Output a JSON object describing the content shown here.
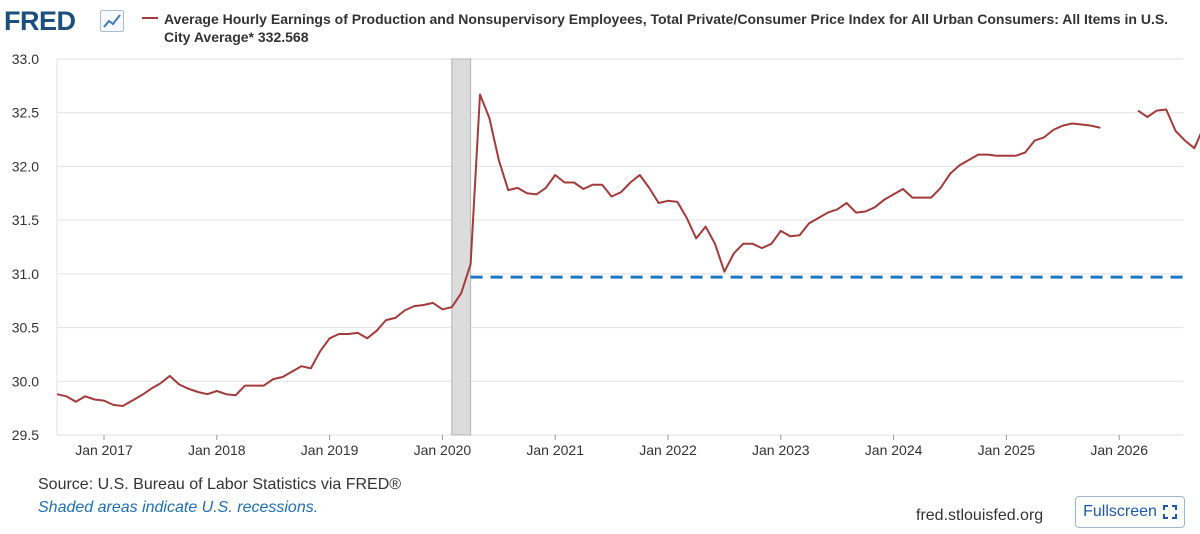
{
  "brand": {
    "logo_text": "FRED"
  },
  "legend": {
    "text": "Average Hourly Earnings of Production and Nonsupervisory Employees, Total Private/Consumer Price Index for All Urban Consumers: All Items in U.S. City Average* 332.568",
    "color": "#a33b3b"
  },
  "footer": {
    "source": "U.S. Bureau of Labor Statistics via FRED®",
    "recession_note": "Shaded areas indicate U.S. recessions.",
    "site": "fred.stlouisfed.org",
    "fullscreen_label": "Fullscreen"
  },
  "chart_data": {
    "type": "line",
    "title": "",
    "xlabel": "",
    "ylabel": "",
    "x_ticks": [
      "Jan 2017",
      "Jan 2018",
      "Jan 2019",
      "Jan 2020",
      "Jan 2021",
      "Jan 2022",
      "Jan 2023",
      "Jan 2024",
      "Jan 2025",
      "Jan 2026"
    ],
    "y_ticks": [
      "33.0",
      "32.5",
      "32.0",
      "31.5",
      "31.0",
      "30.5",
      "30.0",
      "29.5"
    ],
    "ylim": [
      29.5,
      33.0
    ],
    "xlim": [
      "2016-08",
      "2026-07"
    ],
    "grid": true,
    "colors": {
      "series": "#a33b3b",
      "reference": "#1f77c4",
      "recession": "#dcdcdc"
    },
    "recessions": [
      {
        "start": "2020-02",
        "end": "2020-04"
      }
    ],
    "reference_line": {
      "y": 30.97,
      "start": "2020-04",
      "style": "dashed"
    },
    "series": [
      {
        "x_start": "2016-08",
        "values": [
          29.88,
          29.86,
          29.81,
          29.86,
          29.83,
          29.82,
          29.78,
          29.77,
          29.82,
          29.87,
          29.93,
          29.98,
          30.05,
          29.97,
          29.93,
          29.9,
          29.88,
          29.91,
          29.88,
          29.87,
          29.96,
          29.96,
          29.96,
          30.02,
          30.04,
          30.09,
          30.14,
          30.12,
          30.28,
          30.4,
          30.44,
          30.44,
          30.45,
          30.4,
          30.47,
          30.57,
          30.59,
          30.66,
          30.7,
          30.71,
          30.73,
          30.67,
          30.69,
          30.82,
          31.09,
          32.67,
          32.45,
          32.06,
          31.78,
          31.8,
          31.75,
          31.74,
          31.8,
          31.92,
          31.85,
          31.85,
          31.79,
          31.83,
          31.83,
          31.72,
          31.76,
          31.85,
          31.92,
          31.8,
          31.66,
          31.68,
          31.67,
          31.52,
          31.33,
          31.44,
          31.28,
          31.02,
          31.19,
          31.28,
          31.28,
          31.24,
          31.28,
          31.4,
          31.35,
          31.36,
          31.47,
          31.52,
          31.57,
          31.6,
          31.66,
          31.57,
          31.58,
          31.62,
          31.69,
          31.74,
          31.79,
          31.71,
          31.71,
          31.71,
          31.8,
          31.93,
          32.01,
          32.06,
          32.11,
          32.11,
          32.1,
          32.1,
          32.1,
          32.13,
          32.24,
          32.27,
          32.34,
          32.38,
          32.4,
          32.39,
          32.38,
          32.36,
          null,
          null,
          null,
          32.52,
          32.46,
          32.52,
          32.53,
          32.33,
          32.24,
          32.17,
          32.37
        ]
      }
    ]
  }
}
